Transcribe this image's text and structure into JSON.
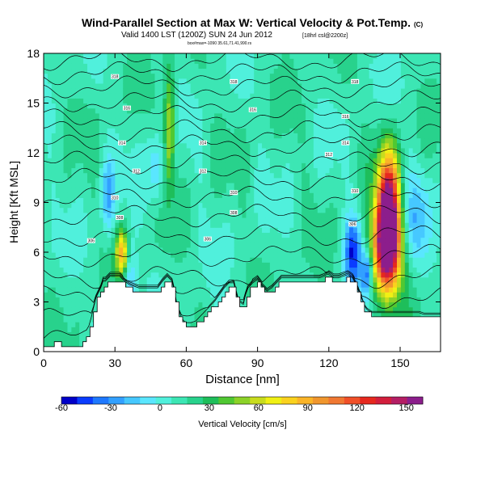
{
  "chart_data": {
    "type": "heatmap",
    "title": "Wind-Parallel Section at Max W: Vertical Velocity & Pot.Temp.",
    "title_mark": "(C)",
    "subtitle": "Valid 1400 LST (1200Z) SUN 24 Jun 2012",
    "subtitle_note": "[18hrl csl@2200z]",
    "subtitle2": "box#max=-1090 35.61,71.41,990.rs",
    "xlabel": "Distance [nm]",
    "ylabel": "Height [Kft MSL]",
    "xlim": [
      0,
      167
    ],
    "ylim": [
      0,
      18
    ],
    "xticks": [
      0,
      30,
      60,
      90,
      120,
      150
    ],
    "yticks": [
      0,
      3,
      6,
      9,
      12,
      15,
      18
    ],
    "colorbar": {
      "label": "Vertical Velocity [cm/s]",
      "ticks": [
        -60,
        -30,
        0,
        30,
        60,
        90,
        120,
        150
      ],
      "range": [
        -60,
        160
      ],
      "colors": [
        "#0000c8",
        "#0a3cff",
        "#1e78ff",
        "#32a0ff",
        "#46c8ff",
        "#5ae6ff",
        "#50f0dc",
        "#3ce6b4",
        "#28d28c",
        "#1ebe5a",
        "#50c832",
        "#8cd228",
        "#c8dc1e",
        "#f0f014",
        "#fad21e",
        "#fab428",
        "#f0962d",
        "#f07832",
        "#f05028",
        "#e6281e",
        "#d21e3c",
        "#b41e64",
        "#8c1e8c"
      ]
    },
    "terrain_profile": {
      "x": [
        0,
        3,
        5,
        8,
        11,
        15,
        17,
        18,
        19,
        20,
        21,
        22,
        23,
        24,
        25,
        26,
        28,
        30,
        32,
        34,
        36,
        38,
        40,
        42,
        44,
        46,
        48,
        50,
        52,
        54,
        55,
        56,
        57,
        58,
        59,
        60,
        62,
        64,
        66,
        68,
        70,
        72,
        74,
        76,
        78,
        80,
        81,
        82,
        84,
        85,
        86,
        88,
        90,
        92,
        94,
        96,
        98,
        100,
        104,
        108,
        112,
        116,
        118,
        119,
        120,
        122,
        124,
        126,
        128,
        130,
        132,
        134,
        135,
        136,
        138,
        140,
        142,
        144,
        146,
        148,
        150,
        152,
        154,
        156,
        158,
        160,
        163,
        165,
        167
      ],
      "y": [
        0.3,
        0.3,
        0.6,
        0.4,
        0.3,
        0.3,
        0.6,
        0.9,
        1.3,
        1.8,
        2.4,
        3.0,
        3.3,
        3.6,
        4.0,
        4.0,
        4.3,
        4.3,
        4.3,
        4.0,
        3.8,
        3.7,
        3.6,
        3.6,
        3.6,
        3.6,
        3.6,
        4.0,
        4.3,
        4.0,
        3.4,
        2.6,
        2.2,
        1.8,
        1.6,
        1.5,
        1.5,
        1.6,
        1.9,
        2.2,
        2.5,
        2.8,
        3.2,
        3.6,
        3.9,
        3.9,
        3.3,
        2.8,
        2.6,
        3.2,
        3.6,
        3.9,
        4.1,
        3.7,
        3.4,
        3.6,
        3.9,
        4.2,
        4.2,
        4.2,
        4.2,
        4.2,
        4.3,
        4.4,
        4.4,
        4.2,
        4.2,
        4.3,
        4.4,
        4.2,
        3.6,
        2.9,
        2.5,
        2.3,
        2.1,
        2.1,
        2.1,
        2.1,
        2.1,
        2.1,
        2.1,
        2.1,
        2.1,
        2.1,
        2.1,
        2.0,
        2.0,
        2.0,
        2.0
      ]
    },
    "wmax": [
      {
        "x": 145,
        "y": 8.5,
        "value": 160,
        "sx": 3.2,
        "sy": 2.4
      },
      {
        "x": 144,
        "y": 6.0,
        "value": 110,
        "sx": 4.5,
        "sy": 1.8
      },
      {
        "x": 33,
        "y": 6.0,
        "value": 75,
        "sx": 1.8,
        "sy": 1.0
      },
      {
        "x": 53,
        "y": 13.5,
        "value": 50,
        "sx": 1.6,
        "sy": 2.5
      },
      {
        "x": 130,
        "y": 6.0,
        "value": -60,
        "sx": 2.5,
        "sy": 1.5
      },
      {
        "x": 136,
        "y": 4.8,
        "value": -50,
        "sx": 1.6,
        "sy": 1.0
      },
      {
        "x": 157,
        "y": 8.0,
        "value": -25,
        "sx": 4.0,
        "sy": 2.0
      },
      {
        "x": 27,
        "y": 9.5,
        "value": -35,
        "sx": 2.0,
        "sy": 1.5
      },
      {
        "x": 36,
        "y": 4.5,
        "value": -30,
        "sx": 2.0,
        "sy": 1.5
      },
      {
        "x": 47,
        "y": 11.0,
        "value": -25,
        "sx": 2.5,
        "sy": 1.5
      }
    ],
    "contour_labels": [
      {
        "x": 20,
        "y": 6.7,
        "text": "306"
      },
      {
        "x": 32,
        "y": 8.1,
        "text": "308"
      },
      {
        "x": 30,
        "y": 9.3,
        "text": "310"
      },
      {
        "x": 39,
        "y": 10.9,
        "text": "312"
      },
      {
        "x": 33,
        "y": 12.6,
        "text": "314"
      },
      {
        "x": 35,
        "y": 14.7,
        "text": "316"
      },
      {
        "x": 30,
        "y": 16.6,
        "text": "318"
      },
      {
        "x": 69,
        "y": 6.8,
        "text": "306"
      },
      {
        "x": 67,
        "y": 10.9,
        "text": "312"
      },
      {
        "x": 67,
        "y": 12.6,
        "text": "314"
      },
      {
        "x": 80,
        "y": 8.4,
        "text": "308"
      },
      {
        "x": 80,
        "y": 9.6,
        "text": "310"
      },
      {
        "x": 88,
        "y": 14.6,
        "text": "316"
      },
      {
        "x": 80,
        "y": 16.3,
        "text": "318"
      },
      {
        "x": 120,
        "y": 11.9,
        "text": "312"
      },
      {
        "x": 127,
        "y": 14.2,
        "text": "316"
      },
      {
        "x": 127,
        "y": 12.6,
        "text": "314"
      },
      {
        "x": 130,
        "y": 7.7,
        "text": "306"
      },
      {
        "x": 131,
        "y": 9.7,
        "text": "310"
      },
      {
        "x": 131,
        "y": 16.3,
        "text": "318"
      }
    ]
  }
}
